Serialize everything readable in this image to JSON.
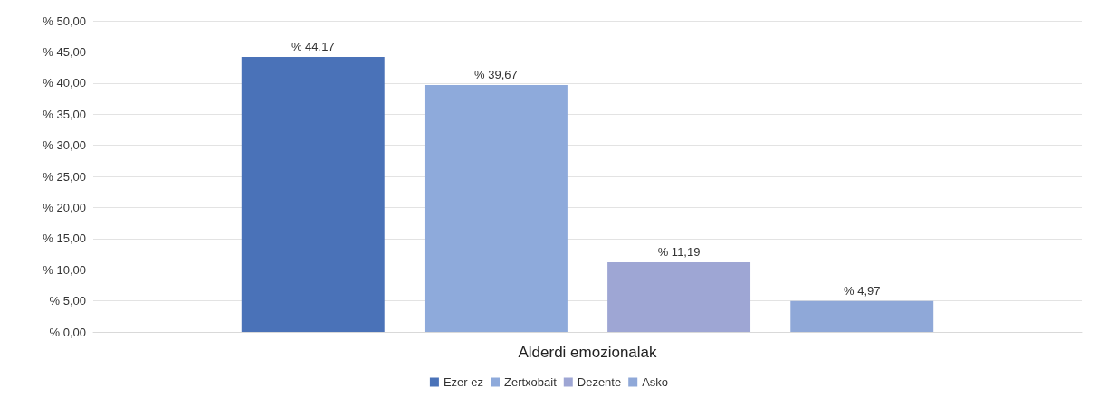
{
  "chart_data": {
    "type": "bar",
    "categories": [
      "Alderdi emozionalak"
    ],
    "series": [
      {
        "name": "Ezer ez",
        "color": "#4a72b8",
        "values": [
          44.17
        ],
        "value_labels": [
          "% 44,17"
        ]
      },
      {
        "name": "Zertxobait",
        "color": "#8eaadb",
        "values": [
          39.67
        ],
        "value_labels": [
          "% 39,67"
        ]
      },
      {
        "name": "Dezente",
        "color": "#9ea6d4",
        "values": [
          11.19
        ],
        "value_labels": [
          "% 11,19"
        ]
      },
      {
        "name": "Asko",
        "color": "#8fa8d8",
        "values": [
          4.97
        ],
        "value_labels": [
          "% 4,97"
        ]
      }
    ],
    "ylim": [
      0,
      50
    ],
    "yticks": [
      {
        "value": 0,
        "label": "% 0,00"
      },
      {
        "value": 5,
        "label": "% 5,00"
      },
      {
        "value": 10,
        "label": "% 10,00"
      },
      {
        "value": 15,
        "label": "% 15,00"
      },
      {
        "value": 20,
        "label": "% 20,00"
      },
      {
        "value": 25,
        "label": "% 25,00"
      },
      {
        "value": 30,
        "label": "% 30,00"
      },
      {
        "value": 35,
        "label": "% 35,00"
      },
      {
        "value": 40,
        "label": "% 40,00"
      },
      {
        "value": 45,
        "label": "% 45,00"
      },
      {
        "value": 50,
        "label": "% 50,00"
      }
    ],
    "grid": "y",
    "legend": "bottom"
  }
}
